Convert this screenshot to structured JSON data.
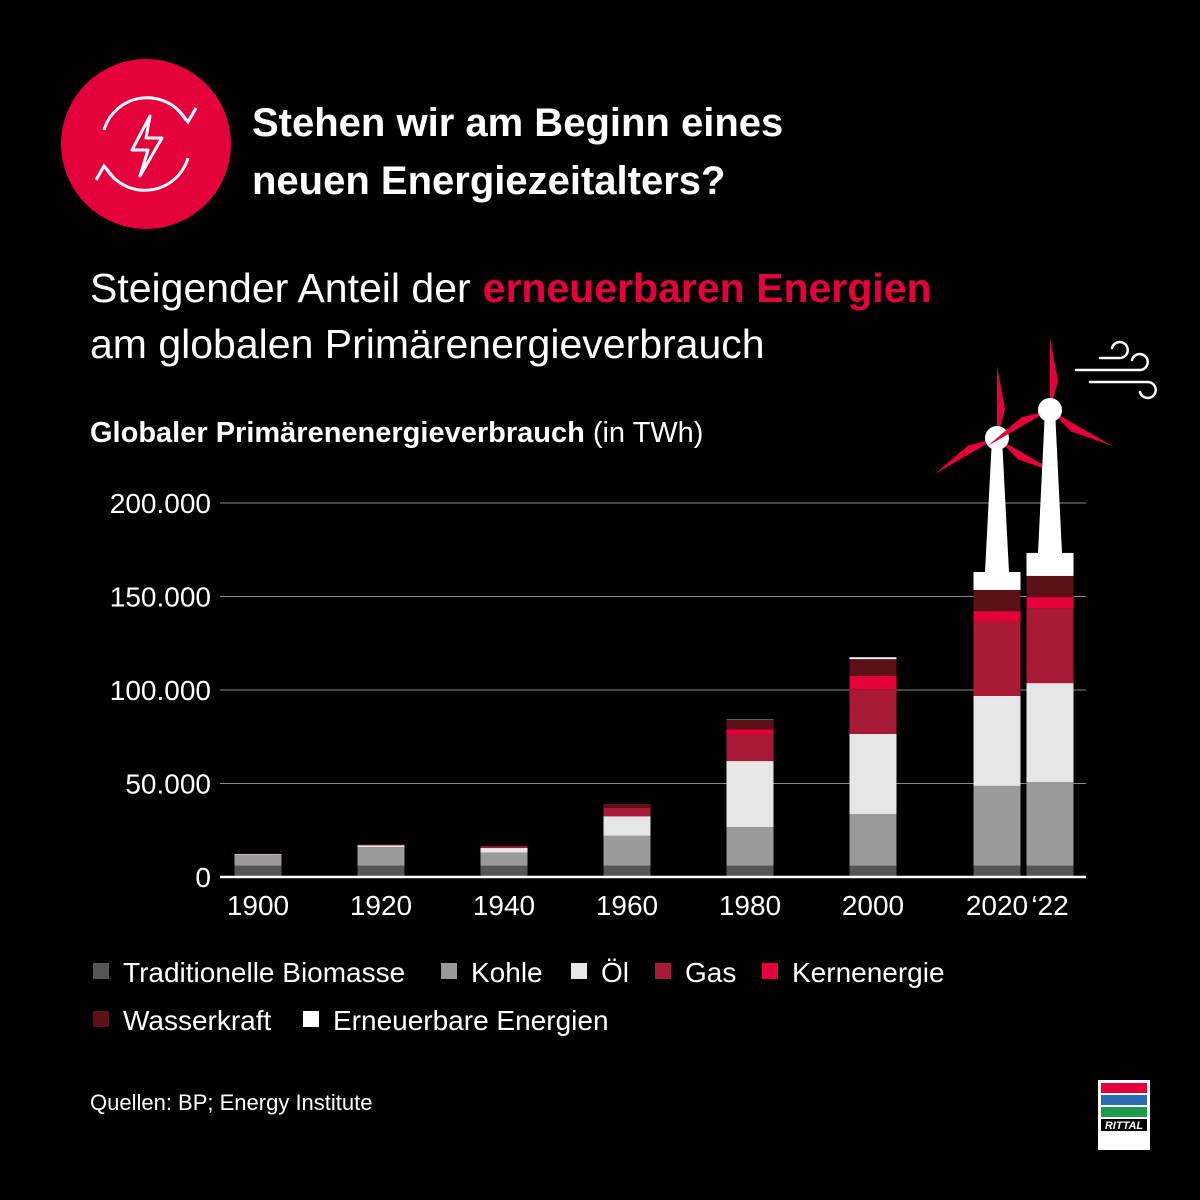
{
  "chart_data": {
    "type": "stacked_bar",
    "title": [
      "Stehen wir am Beginn eines",
      "neuen Energiezeitalters?"
    ],
    "subtitle_lead": "Steigender Anteil der",
    "subtitle_highlight": "erneuerbaren Energien",
    "subtitle_end": "am globalen Primärenergieverbrauch",
    "chart_title": "Globaler Primärenenergieverbrauch",
    "unit": "(in TWh)",
    "source": "Quellen: BP; Energy Institute",
    "logo": "RITTAL",
    "categories": [
      "1900",
      "1920",
      "1940",
      "1960",
      "1980",
      "2000",
      "2020",
      "‘22"
    ],
    "series": [
      {
        "name": "Traditionelle Biomasse",
        "color": "#555555",
        "values": [
          6000,
          6000,
          6000,
          6000,
          6000,
          6000,
          6000,
          6000
        ]
      },
      {
        "name": "Kohle",
        "color": "#9a9a9a",
        "values": [
          6000,
          10000,
          7000,
          16000,
          20700,
          27700,
          42700,
          44800
        ]
      },
      {
        "name": "Öl",
        "color": "#e6e6e6",
        "values": [
          300,
          1000,
          2500,
          10500,
          35300,
          42800,
          48100,
          52900
        ]
      },
      {
        "name": "Gas",
        "color": "#a81a36",
        "values": [
          100,
          300,
          800,
          4500,
          14000,
          24000,
          39600,
          40100
        ]
      },
      {
        "name": "Kernenergie",
        "color": "#e4003a",
        "values": [
          0,
          0,
          0,
          100,
          3000,
          7000,
          5800,
          5900
        ]
      },
      {
        "name": "Wasserkraft",
        "color": "#5c1018",
        "values": [
          100,
          200,
          400,
          2000,
          5000,
          9000,
          11300,
          11300
        ]
      },
      {
        "name": "Erneuerbare Energien",
        "color": "#ffffff",
        "values": [
          0,
          0,
          0,
          0,
          200,
          1000,
          9600,
          12300
        ]
      }
    ],
    "ylim": [
      0,
      200000
    ],
    "yticks": [
      0,
      {
        "value": 50000,
        "label": "50.000"
      },
      {
        "value": 100000,
        "label": "100.000"
      },
      {
        "value": 150000,
        "label": "150.000"
      },
      {
        "value": 200000,
        "label": "200.000"
      }
    ],
    "grid": true
  }
}
